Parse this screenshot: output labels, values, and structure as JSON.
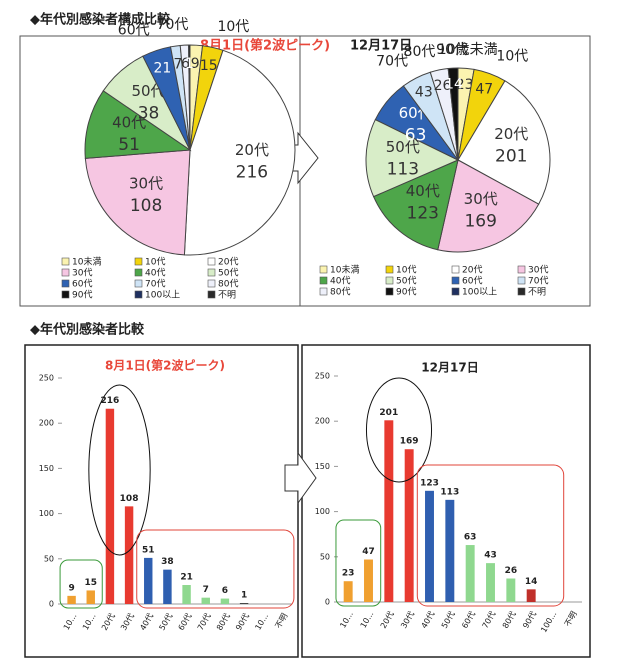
{
  "headings": [
    "◆年代別感染者構成比較",
    "◆年代別感染者比較"
  ],
  "chart_data": [
    {
      "type": "pie",
      "title": "8月1日(第2波ピーク)",
      "categories": [
        "10未満",
        "10代",
        "20代",
        "30代",
        "40代",
        "50代",
        "60代",
        "70代",
        "80代",
        "90代",
        "100以上",
        "不明"
      ],
      "slice_labels": [
        null,
        "10代",
        "20代",
        "30代",
        "40代",
        "50代",
        "60代",
        "70代",
        null,
        null,
        null,
        null
      ],
      "values": [
        9,
        15,
        216,
        108,
        51,
        38,
        21,
        7,
        6,
        1,
        0,
        0
      ],
      "colors": [
        "#fbf3b0",
        "#f2d40c",
        "#ffffff",
        "#f6c6e2",
        "#4ea64a",
        "#d8edc8",
        "#2f62b2",
        "#cfe4f6",
        "#eef0fa",
        "#111111",
        "#1f3060",
        "#2a2a2a"
      ]
    },
    {
      "type": "pie",
      "title": "12月17日",
      "categories": [
        "10未満",
        "10代",
        "20代",
        "30代",
        "40代",
        "50代",
        "60代",
        "70代",
        "80代",
        "90代",
        "100以上",
        "不明"
      ],
      "slice_labels": [
        "10歳未満",
        "10代",
        "20代",
        "30代",
        "40代",
        "50代",
        "60代",
        "70代",
        "80代",
        "90代",
        null,
        null
      ],
      "values": [
        23,
        47,
        201,
        169,
        123,
        113,
        63,
        43,
        26,
        14,
        0,
        0
      ],
      "colors": [
        "#fbf3b0",
        "#f2d40c",
        "#ffffff",
        "#f6c6e2",
        "#4ea64a",
        "#d8edc8",
        "#2f62b2",
        "#cfe4f6",
        "#eef0fa",
        "#111111",
        "#1f3060",
        "#2a2a2a"
      ]
    },
    {
      "type": "bar",
      "title": "8月1日(第2波ピーク)",
      "categories": [
        "10...",
        "10...",
        "20代",
        "30代",
        "40代",
        "50代",
        "60代",
        "70代",
        "80代",
        "90代",
        "10...",
        "不明"
      ],
      "values": [
        9,
        15,
        216,
        108,
        51,
        38,
        21,
        7,
        6,
        1,
        0,
        0
      ],
      "colors": [
        "#f0a030",
        "#f0a030",
        "#e83a30",
        "#e83a30",
        "#2f5fb0",
        "#2f5fb0",
        "#8fd88f",
        "#8fd88f",
        "#8fd88f",
        "#333333",
        "#333333",
        "#333333"
      ],
      "ylim": [
        0,
        250
      ],
      "yticks": [
        0,
        50,
        100,
        150,
        200,
        250
      ]
    },
    {
      "type": "bar",
      "title": "12月17日",
      "categories": [
        "10...",
        "10...",
        "20代",
        "30代",
        "40代",
        "50代",
        "60代",
        "70代",
        "80代",
        "90代",
        "100...",
        "不明"
      ],
      "values": [
        23,
        47,
        201,
        169,
        123,
        113,
        63,
        43,
        26,
        14,
        0,
        0
      ],
      "colors": [
        "#f0a030",
        "#f0a030",
        "#e83a30",
        "#e83a30",
        "#2f5fb0",
        "#2f5fb0",
        "#8fd88f",
        "#8fd88f",
        "#8fd88f",
        "#c0302a",
        "#333333",
        "#333333"
      ],
      "ylim": [
        0,
        250
      ],
      "yticks": [
        0,
        50,
        100,
        150,
        200,
        250
      ]
    }
  ]
}
